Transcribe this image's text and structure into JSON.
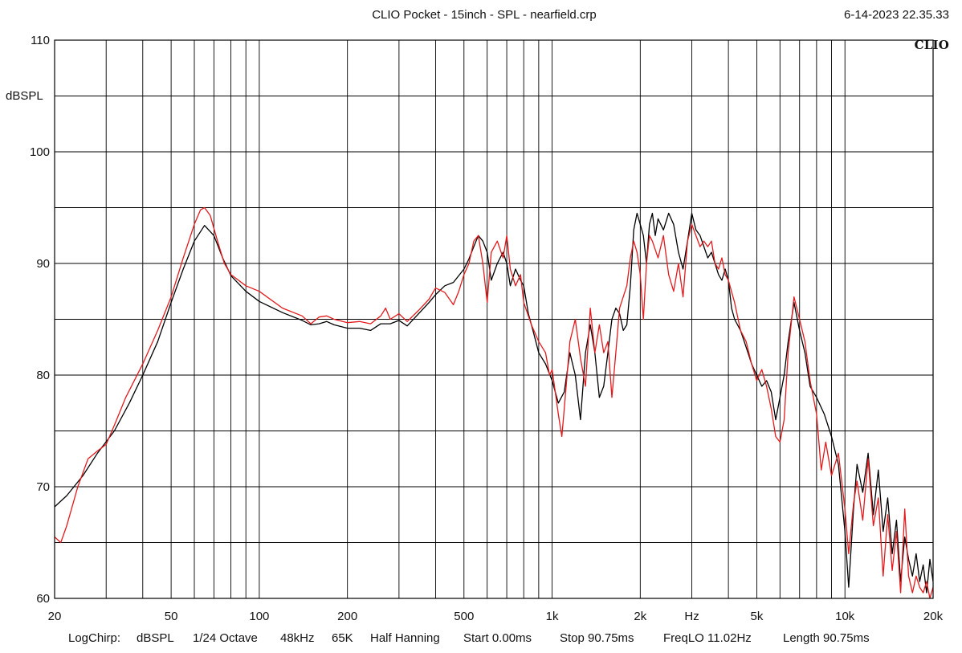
{
  "header": {
    "title": "CLIO Pocket - 15inch - SPL - nearfield.crp",
    "date": "6-14-2023 22.35.33",
    "logo": "CLIO"
  },
  "footer": {
    "items": [
      "LogChirp:",
      "dBSPL",
      "1/24 Octave",
      "48kHz",
      "65K",
      "Half Hanning",
      "Start 0.00ms",
      "Stop 90.75ms",
      "FreqLO 11.02Hz",
      "Length 90.75ms"
    ]
  },
  "chart_data": {
    "type": "line",
    "title": "CLIO Pocket - 15inch - SPL - nearfield.crp",
    "xlabel": "Hz",
    "ylabel": "dBSPL",
    "x_scale": "log",
    "xlim": [
      20,
      20000
    ],
    "ylim": [
      60,
      110
    ],
    "x_tick_labels": [
      {
        "value": 20,
        "label": "20"
      },
      {
        "value": 50,
        "label": "50"
      },
      {
        "value": 100,
        "label": "100"
      },
      {
        "value": 200,
        "label": "200"
      },
      {
        "value": 500,
        "label": "500"
      },
      {
        "value": 1000,
        "label": "1k"
      },
      {
        "value": 2000,
        "label": "2k"
      },
      {
        "value": 3000,
        "label": "Hz"
      },
      {
        "value": 5000,
        "label": "5k"
      },
      {
        "value": 10000,
        "label": "10k"
      },
      {
        "value": 20000,
        "label": "20k"
      }
    ],
    "y_tick_labels": [
      {
        "value": 110,
        "label": "110"
      },
      {
        "value": 100,
        "label": "100"
      },
      {
        "value": 90,
        "label": "90"
      },
      {
        "value": 80,
        "label": "80"
      },
      {
        "value": 70,
        "label": "70"
      },
      {
        "value": 60,
        "label": "60"
      }
    ],
    "grid": true,
    "series": [
      {
        "color": "#000000",
        "points": [
          [
            20,
            68.2
          ],
          [
            22,
            69.2
          ],
          [
            25,
            71.0
          ],
          [
            28,
            73.0
          ],
          [
            32,
            75.0
          ],
          [
            36,
            77.5
          ],
          [
            40,
            80.0
          ],
          [
            45,
            83.0
          ],
          [
            50,
            86.5
          ],
          [
            55,
            89.5
          ],
          [
            60,
            92.0
          ],
          [
            65,
            93.4
          ],
          [
            70,
            92.5
          ],
          [
            75,
            90.5
          ],
          [
            80,
            88.9
          ],
          [
            90,
            87.5
          ],
          [
            100,
            86.6
          ],
          [
            120,
            85.6
          ],
          [
            140,
            84.9
          ],
          [
            150,
            84.5
          ],
          [
            160,
            84.6
          ],
          [
            170,
            84.8
          ],
          [
            180,
            84.5
          ],
          [
            200,
            84.2
          ],
          [
            220,
            84.2
          ],
          [
            240,
            84.0
          ],
          [
            260,
            84.6
          ],
          [
            280,
            84.6
          ],
          [
            300,
            84.9
          ],
          [
            320,
            84.4
          ],
          [
            350,
            85.5
          ],
          [
            380,
            86.5
          ],
          [
            400,
            87.2
          ],
          [
            430,
            88.0
          ],
          [
            460,
            88.3
          ],
          [
            500,
            89.5
          ],
          [
            520,
            90.4
          ],
          [
            540,
            91.5
          ],
          [
            560,
            92.5
          ],
          [
            580,
            92.0
          ],
          [
            600,
            91.0
          ],
          [
            620,
            88.5
          ],
          [
            650,
            90.0
          ],
          [
            680,
            91.0
          ],
          [
            700,
            90.0
          ],
          [
            720,
            88.0
          ],
          [
            750,
            89.5
          ],
          [
            780,
            88.5
          ],
          [
            800,
            88.0
          ],
          [
            830,
            85.5
          ],
          [
            860,
            84.0
          ],
          [
            900,
            82.0
          ],
          [
            950,
            81.0
          ],
          [
            1000,
            79.5
          ],
          [
            1050,
            77.5
          ],
          [
            1100,
            78.5
          ],
          [
            1150,
            82.0
          ],
          [
            1200,
            80.0
          ],
          [
            1250,
            76.0
          ],
          [
            1300,
            82.0
          ],
          [
            1350,
            84.5
          ],
          [
            1400,
            82.0
          ],
          [
            1450,
            78.0
          ],
          [
            1500,
            79.0
          ],
          [
            1550,
            82.0
          ],
          [
            1600,
            85.0
          ],
          [
            1650,
            86.0
          ],
          [
            1700,
            85.5
          ],
          [
            1750,
            84.0
          ],
          [
            1800,
            84.5
          ],
          [
            1850,
            88.0
          ],
          [
            1900,
            93.0
          ],
          [
            1950,
            94.5
          ],
          [
            2000,
            93.5
          ],
          [
            2050,
            92.5
          ],
          [
            2100,
            90.0
          ],
          [
            2150,
            93.5
          ],
          [
            2200,
            94.5
          ],
          [
            2250,
            92.5
          ],
          [
            2300,
            94.0
          ],
          [
            2400,
            93.0
          ],
          [
            2500,
            94.5
          ],
          [
            2600,
            93.5
          ],
          [
            2700,
            91.0
          ],
          [
            2800,
            89.5
          ],
          [
            2900,
            92.0
          ],
          [
            3000,
            94.5
          ],
          [
            3100,
            93.0
          ],
          [
            3200,
            92.5
          ],
          [
            3300,
            91.5
          ],
          [
            3400,
            90.5
          ],
          [
            3500,
            91.0
          ],
          [
            3600,
            90.0
          ],
          [
            3700,
            89.0
          ],
          [
            3800,
            88.5
          ],
          [
            3900,
            89.5
          ],
          [
            4000,
            88.5
          ],
          [
            4100,
            86.0
          ],
          [
            4200,
            85.0
          ],
          [
            4400,
            84.0
          ],
          [
            4600,
            82.5
          ],
          [
            4800,
            81.0
          ],
          [
            5000,
            80.0
          ],
          [
            5200,
            79.0
          ],
          [
            5400,
            79.5
          ],
          [
            5600,
            78.5
          ],
          [
            5800,
            76.0
          ],
          [
            6000,
            78.0
          ],
          [
            6200,
            80.0
          ],
          [
            6400,
            83.0
          ],
          [
            6700,
            86.5
          ],
          [
            7000,
            84.0
          ],
          [
            7300,
            82.0
          ],
          [
            7600,
            79.0
          ],
          [
            8000,
            78.0
          ],
          [
            8500,
            76.5
          ],
          [
            9000,
            74.5
          ],
          [
            9500,
            72.0
          ],
          [
            10000,
            66.0
          ],
          [
            10300,
            61.0
          ],
          [
            10700,
            68.0
          ],
          [
            11000,
            72.0
          ],
          [
            11500,
            69.5
          ],
          [
            12000,
            73.0
          ],
          [
            12500,
            67.5
          ],
          [
            13000,
            71.5
          ],
          [
            13500,
            66.0
          ],
          [
            14000,
            69.0
          ],
          [
            14500,
            64.0
          ],
          [
            15000,
            67.0
          ],
          [
            15500,
            61.5
          ],
          [
            16000,
            65.5
          ],
          [
            16500,
            63.5
          ],
          [
            17000,
            62.0
          ],
          [
            17500,
            64.0
          ],
          [
            18000,
            61.5
          ],
          [
            18500,
            63.0
          ],
          [
            19000,
            60.5
          ],
          [
            19500,
            63.5
          ],
          [
            20000,
            61.5
          ]
        ]
      },
      {
        "color": "#e41a1c",
        "points": [
          [
            20,
            65.5
          ],
          [
            21,
            65.0
          ],
          [
            22,
            66.5
          ],
          [
            24,
            70.0
          ],
          [
            26,
            72.5
          ],
          [
            28,
            73.2
          ],
          [
            30,
            73.8
          ],
          [
            32,
            75.5
          ],
          [
            35,
            78.0
          ],
          [
            40,
            81.0
          ],
          [
            45,
            84.0
          ],
          [
            50,
            87.0
          ],
          [
            55,
            90.5
          ],
          [
            60,
            93.5
          ],
          [
            63,
            94.8
          ],
          [
            65,
            95.0
          ],
          [
            68,
            94.3
          ],
          [
            72,
            92.0
          ],
          [
            76,
            90.0
          ],
          [
            80,
            89.0
          ],
          [
            90,
            88.0
          ],
          [
            100,
            87.5
          ],
          [
            120,
            86.0
          ],
          [
            140,
            85.3
          ],
          [
            150,
            84.6
          ],
          [
            160,
            85.2
          ],
          [
            170,
            85.3
          ],
          [
            180,
            85.0
          ],
          [
            200,
            84.7
          ],
          [
            220,
            84.8
          ],
          [
            240,
            84.6
          ],
          [
            260,
            85.3
          ],
          [
            270,
            86.0
          ],
          [
            280,
            85.0
          ],
          [
            300,
            85.5
          ],
          [
            320,
            84.8
          ],
          [
            350,
            85.8
          ],
          [
            380,
            86.8
          ],
          [
            400,
            87.8
          ],
          [
            430,
            87.4
          ],
          [
            460,
            86.3
          ],
          [
            480,
            87.5
          ],
          [
            500,
            89.0
          ],
          [
            520,
            90.0
          ],
          [
            540,
            92.0
          ],
          [
            560,
            92.5
          ],
          [
            580,
            90.0
          ],
          [
            600,
            86.5
          ],
          [
            620,
            91.0
          ],
          [
            650,
            92.0
          ],
          [
            680,
            90.5
          ],
          [
            700,
            92.5
          ],
          [
            720,
            89.5
          ],
          [
            750,
            88.0
          ],
          [
            780,
            89.0
          ],
          [
            800,
            86.5
          ],
          [
            850,
            84.5
          ],
          [
            900,
            83.0
          ],
          [
            950,
            82.0
          ],
          [
            980,
            80.0
          ],
          [
            1000,
            80.5
          ],
          [
            1050,
            76.5
          ],
          [
            1080,
            74.5
          ],
          [
            1100,
            77.0
          ],
          [
            1150,
            83.0
          ],
          [
            1200,
            85.0
          ],
          [
            1250,
            81.5
          ],
          [
            1300,
            79.0
          ],
          [
            1350,
            86.0
          ],
          [
            1400,
            82.0
          ],
          [
            1450,
            84.5
          ],
          [
            1500,
            82.0
          ],
          [
            1550,
            83.0
          ],
          [
            1600,
            78.0
          ],
          [
            1650,
            82.0
          ],
          [
            1700,
            86.0
          ],
          [
            1800,
            88.0
          ],
          [
            1850,
            90.5
          ],
          [
            1900,
            92.0
          ],
          [
            1950,
            91.0
          ],
          [
            2000,
            89.0
          ],
          [
            2050,
            85.0
          ],
          [
            2100,
            90.0
          ],
          [
            2150,
            92.5
          ],
          [
            2200,
            92.0
          ],
          [
            2300,
            90.5
          ],
          [
            2400,
            92.5
          ],
          [
            2500,
            89.0
          ],
          [
            2600,
            87.5
          ],
          [
            2700,
            90.0
          ],
          [
            2800,
            87.0
          ],
          [
            2900,
            92.0
          ],
          [
            3000,
            93.5
          ],
          [
            3100,
            92.5
          ],
          [
            3200,
            91.5
          ],
          [
            3300,
            92.0
          ],
          [
            3400,
            91.5
          ],
          [
            3500,
            92.0
          ],
          [
            3600,
            90.0
          ],
          [
            3700,
            89.5
          ],
          [
            3800,
            90.5
          ],
          [
            3900,
            89.0
          ],
          [
            4000,
            88.5
          ],
          [
            4200,
            86.5
          ],
          [
            4400,
            84.0
          ],
          [
            4600,
            83.0
          ],
          [
            4800,
            81.0
          ],
          [
            5000,
            79.5
          ],
          [
            5200,
            80.5
          ],
          [
            5400,
            79.0
          ],
          [
            5600,
            77.0
          ],
          [
            5800,
            74.5
          ],
          [
            6000,
            74.0
          ],
          [
            6200,
            76.0
          ],
          [
            6400,
            82.0
          ],
          [
            6700,
            87.0
          ],
          [
            7000,
            85.0
          ],
          [
            7300,
            83.0
          ],
          [
            7600,
            79.5
          ],
          [
            8000,
            76.5
          ],
          [
            8300,
            71.5
          ],
          [
            8600,
            74.0
          ],
          [
            9000,
            71.0
          ],
          [
            9500,
            73.0
          ],
          [
            10000,
            68.0
          ],
          [
            10300,
            64.0
          ],
          [
            10700,
            68.5
          ],
          [
            11000,
            70.5
          ],
          [
            11500,
            67.0
          ],
          [
            12000,
            72.5
          ],
          [
            12500,
            66.5
          ],
          [
            13000,
            69.0
          ],
          [
            13500,
            62.0
          ],
          [
            14000,
            67.5
          ],
          [
            14500,
            62.5
          ],
          [
            15000,
            66.0
          ],
          [
            15500,
            60.5
          ],
          [
            16000,
            68.0
          ],
          [
            16500,
            62.0
          ],
          [
            17000,
            60.5
          ],
          [
            17500,
            62.0
          ],
          [
            18000,
            61.0
          ],
          [
            18500,
            60.5
          ],
          [
            19000,
            61.5
          ],
          [
            19500,
            60.0
          ],
          [
            20000,
            61.0
          ]
        ]
      }
    ]
  }
}
